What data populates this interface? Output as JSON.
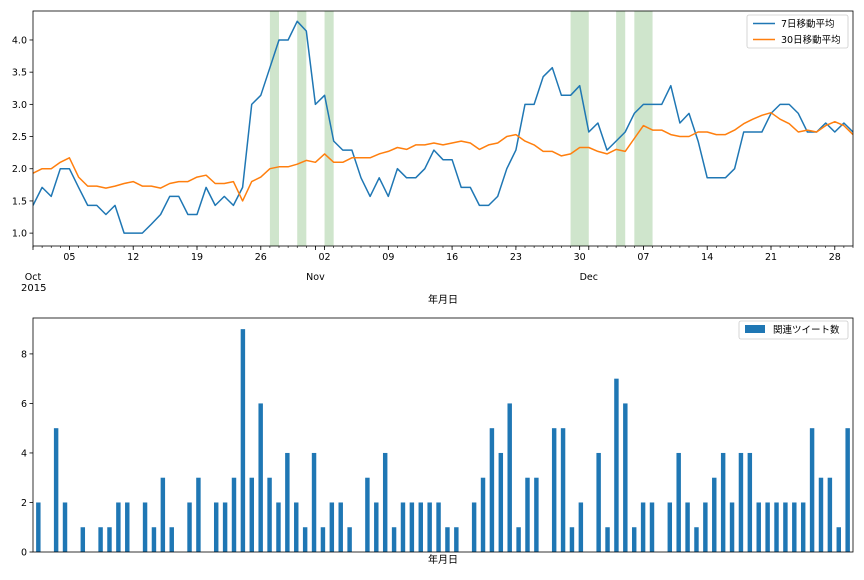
{
  "chart_data": [
    {
      "type": "line",
      "xlabel": "年月日",
      "year_label": "2015",
      "x_start": "2015-10-01",
      "ylim": [
        0.8,
        4.45
      ],
      "yticks": [
        1.0,
        1.5,
        2.0,
        2.5,
        3.0,
        3.5,
        4.0
      ],
      "ytick_labels": [
        "1.0",
        "1.5",
        "2.0",
        "2.5",
        "3.0",
        "3.5",
        "4.0"
      ],
      "major_ticks": [
        {
          "date": "2015-10-05",
          "label": "05"
        },
        {
          "date": "2015-10-12",
          "label": "12"
        },
        {
          "date": "2015-10-19",
          "label": "19"
        },
        {
          "date": "2015-10-26",
          "label": "26"
        },
        {
          "date": "2015-11-02",
          "label": "02"
        },
        {
          "date": "2015-11-09",
          "label": "09"
        },
        {
          "date": "2015-11-16",
          "label": "16"
        },
        {
          "date": "2015-11-23",
          "label": "23"
        },
        {
          "date": "2015-11-30",
          "label": "30"
        },
        {
          "date": "2015-12-07",
          "label": "07"
        },
        {
          "date": "2015-12-14",
          "label": "14"
        },
        {
          "date": "2015-12-21",
          "label": "21"
        },
        {
          "date": "2015-12-28",
          "label": "28"
        }
      ],
      "month_labels": [
        {
          "date": "2015-10-01",
          "label": "Oct"
        },
        {
          "date": "2015-11-01",
          "label": "Nov"
        },
        {
          "date": "2015-12-01",
          "label": "Dec"
        }
      ],
      "legend_position": "top-right",
      "shaded_spans": [
        [
          "2015-10-27",
          "2015-10-28"
        ],
        [
          "2015-10-30",
          "2015-10-31"
        ],
        [
          "2015-11-02",
          "2015-11-03"
        ],
        [
          "2015-11-29",
          "2015-12-01"
        ],
        [
          "2015-12-04",
          "2015-12-05"
        ],
        [
          "2015-12-06",
          "2015-12-08"
        ]
      ],
      "span_color": "#cfe5cc",
      "series": [
        {
          "name": "7日移動平均",
          "color": "#1f77b4",
          "values": [
            1.43,
            1.71,
            1.57,
            2.0,
            2.0,
            1.71,
            1.43,
            1.43,
            1.29,
            1.43,
            1.0,
            1.0,
            1.0,
            1.14,
            1.29,
            1.57,
            1.57,
            1.29,
            1.29,
            1.71,
            1.43,
            1.57,
            1.43,
            1.71,
            3.0,
            3.14,
            3.57,
            4.0,
            4.0,
            4.29,
            4.14,
            3.0,
            3.14,
            2.43,
            2.29,
            2.29,
            1.86,
            1.57,
            1.86,
            1.57,
            2.0,
            1.86,
            1.86,
            2.0,
            2.29,
            2.14,
            2.14,
            1.71,
            1.71,
            1.43,
            1.43,
            1.57,
            2.0,
            2.29,
            3.0,
            3.0,
            3.43,
            3.57,
            3.14,
            3.14,
            3.29,
            2.57,
            2.71,
            2.29,
            2.43,
            2.57,
            2.86,
            3.0,
            3.0,
            3.0,
            3.29,
            2.71,
            2.86,
            2.43,
            1.86,
            1.86,
            1.86,
            2.0,
            2.57,
            2.57,
            2.57,
            2.86,
            3.0,
            3.0,
            2.86,
            2.57,
            2.57,
            2.71,
            2.57,
            2.71,
            2.57
          ]
        },
        {
          "name": "30日移動平均",
          "color": "#ff7f0e",
          "values": [
            1.93,
            2.0,
            2.0,
            2.1,
            2.17,
            1.87,
            1.73,
            1.73,
            1.7,
            1.73,
            1.77,
            1.8,
            1.73,
            1.73,
            1.7,
            1.77,
            1.8,
            1.8,
            1.87,
            1.9,
            1.77,
            1.77,
            1.8,
            1.5,
            1.8,
            1.87,
            2.0,
            2.03,
            2.03,
            2.07,
            2.13,
            2.1,
            2.23,
            2.1,
            2.1,
            2.17,
            2.17,
            2.17,
            2.23,
            2.27,
            2.33,
            2.3,
            2.37,
            2.37,
            2.4,
            2.37,
            2.4,
            2.43,
            2.4,
            2.3,
            2.37,
            2.4,
            2.5,
            2.53,
            2.43,
            2.37,
            2.27,
            2.27,
            2.2,
            2.23,
            2.33,
            2.33,
            2.27,
            2.23,
            2.3,
            2.27,
            2.47,
            2.67,
            2.6,
            2.6,
            2.53,
            2.5,
            2.5,
            2.57,
            2.57,
            2.53,
            2.53,
            2.6,
            2.7,
            2.77,
            2.83,
            2.87,
            2.77,
            2.7,
            2.57,
            2.6,
            2.57,
            2.67,
            2.73,
            2.67,
            2.53
          ]
        }
      ]
    },
    {
      "type": "bar",
      "xlabel": "年月日",
      "ylim": [
        0,
        9.45
      ],
      "yticks": [
        0,
        2,
        4,
        6,
        8
      ],
      "ytick_labels": [
        "0",
        "2",
        "4",
        "6",
        "8"
      ],
      "legend_position": "top-right",
      "series": [
        {
          "name": "関連ツイート数",
          "color": "#1f77b4",
          "values": [
            2,
            0,
            5,
            2,
            0,
            1,
            0,
            1,
            1,
            2,
            2,
            0,
            2,
            1,
            3,
            1,
            0,
            2,
            3,
            0,
            2,
            2,
            3,
            9,
            3,
            6,
            3,
            2,
            4,
            2,
            1,
            4,
            1,
            2,
            2,
            1,
            0,
            3,
            2,
            4,
            1,
            2,
            2,
            2,
            2,
            2,
            1,
            1,
            0,
            2,
            3,
            5,
            4,
            6,
            1,
            3,
            3,
            0,
            5,
            5,
            1,
            2,
            0,
            4,
            1,
            7,
            6,
            1,
            2,
            2,
            0,
            2,
            4,
            2,
            1,
            2,
            3,
            4,
            2,
            4,
            4,
            2,
            2,
            2,
            2,
            2,
            2,
            5,
            3,
            3,
            1,
            5
          ]
        }
      ]
    }
  ]
}
